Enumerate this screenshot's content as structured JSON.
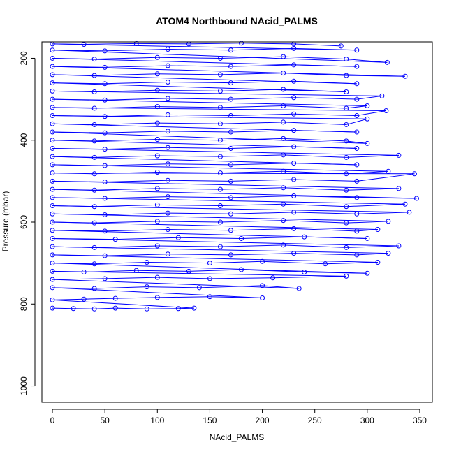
{
  "chart_data": {
    "type": "line",
    "title": "ATOM4 Northbound NAcid_PALMS",
    "xlabel": "NAcid_PALMS",
    "ylabel": "Pressure (mbar)",
    "xlim": [
      -10,
      362
    ],
    "ylim": [
      1040,
      160
    ],
    "y_reversed": true,
    "x_ticks": [
      0,
      50,
      100,
      150,
      200,
      250,
      300,
      350
    ],
    "y_ticks": [
      200,
      400,
      600,
      800,
      1000
    ],
    "series": [
      {
        "color": "#0000ff",
        "marker": "open-circle",
        "points": [
          [
            0,
            810
          ],
          [
            20,
            811
          ],
          [
            40,
            812
          ],
          [
            60,
            810
          ],
          [
            90,
            812
          ],
          [
            120,
            811
          ],
          [
            135,
            810
          ],
          [
            0,
            790
          ],
          [
            30,
            788
          ],
          [
            60,
            786
          ],
          [
            100,
            784
          ],
          [
            150,
            782
          ],
          [
            200,
            785
          ],
          [
            0,
            760
          ],
          [
            40,
            762
          ],
          [
            90,
            758
          ],
          [
            140,
            760
          ],
          [
            200,
            755
          ],
          [
            235,
            762
          ],
          [
            0,
            740
          ],
          [
            50,
            738
          ],
          [
            100,
            735
          ],
          [
            150,
            738
          ],
          [
            210,
            736
          ],
          [
            280,
            732
          ],
          [
            0,
            720
          ],
          [
            30,
            722
          ],
          [
            80,
            718
          ],
          [
            130,
            720
          ],
          [
            180,
            716
          ],
          [
            240,
            722
          ],
          [
            300,
            725
          ],
          [
            0,
            700
          ],
          [
            40,
            702
          ],
          [
            90,
            698
          ],
          [
            150,
            700
          ],
          [
            200,
            696
          ],
          [
            260,
            702
          ],
          [
            310,
            698
          ],
          [
            0,
            680
          ],
          [
            50,
            682
          ],
          [
            110,
            678
          ],
          [
            170,
            680
          ],
          [
            230,
            676
          ],
          [
            290,
            680
          ],
          [
            320,
            676
          ],
          [
            0,
            660
          ],
          [
            40,
            662
          ],
          [
            100,
            658
          ],
          [
            160,
            660
          ],
          [
            220,
            656
          ],
          [
            280,
            662
          ],
          [
            330,
            658
          ],
          [
            0,
            640
          ],
          [
            60,
            642
          ],
          [
            120,
            638
          ],
          [
            180,
            640
          ],
          [
            240,
            636
          ],
          [
            300,
            640
          ],
          [
            0,
            620
          ],
          [
            50,
            622
          ],
          [
            110,
            618
          ],
          [
            170,
            620
          ],
          [
            230,
            616
          ],
          [
            290,
            622
          ],
          [
            310,
            618
          ],
          [
            0,
            600
          ],
          [
            40,
            602
          ],
          [
            100,
            598
          ],
          [
            160,
            600
          ],
          [
            220,
            596
          ],
          [
            280,
            602
          ],
          [
            320,
            598
          ],
          [
            0,
            580
          ],
          [
            50,
            582
          ],
          [
            110,
            578
          ],
          [
            170,
            580
          ],
          [
            230,
            576
          ],
          [
            290,
            580
          ],
          [
            340,
            576
          ],
          [
            0,
            560
          ],
          [
            40,
            562
          ],
          [
            100,
            558
          ],
          [
            160,
            560
          ],
          [
            220,
            556
          ],
          [
            280,
            562
          ],
          [
            336,
            556
          ],
          [
            0,
            540
          ],
          [
            50,
            542
          ],
          [
            110,
            538
          ],
          [
            170,
            540
          ],
          [
            230,
            536
          ],
          [
            290,
            540
          ],
          [
            347,
            542
          ],
          [
            0,
            520
          ],
          [
            40,
            522
          ],
          [
            100,
            518
          ],
          [
            160,
            520
          ],
          [
            220,
            516
          ],
          [
            280,
            522
          ],
          [
            330,
            518
          ],
          [
            0,
            500
          ],
          [
            50,
            502
          ],
          [
            110,
            498
          ],
          [
            170,
            500
          ],
          [
            230,
            496
          ],
          [
            290,
            500
          ],
          [
            345,
            482
          ],
          [
            0,
            480
          ],
          [
            40,
            482
          ],
          [
            100,
            478
          ],
          [
            160,
            480
          ],
          [
            220,
            476
          ],
          [
            280,
            482
          ],
          [
            320,
            476
          ],
          [
            0,
            460
          ],
          [
            50,
            462
          ],
          [
            110,
            458
          ],
          [
            170,
            460
          ],
          [
            230,
            456
          ],
          [
            290,
            460
          ],
          [
            0,
            440
          ],
          [
            40,
            442
          ],
          [
            100,
            438
          ],
          [
            160,
            440
          ],
          [
            220,
            436
          ],
          [
            280,
            442
          ],
          [
            330,
            437
          ],
          [
            0,
            420
          ],
          [
            50,
            422
          ],
          [
            110,
            418
          ],
          [
            170,
            420
          ],
          [
            230,
            416
          ],
          [
            290,
            420
          ],
          [
            0,
            400
          ],
          [
            40,
            402
          ],
          [
            100,
            398
          ],
          [
            160,
            400
          ],
          [
            220,
            396
          ],
          [
            280,
            402
          ],
          [
            300,
            408
          ],
          [
            0,
            380
          ],
          [
            50,
            382
          ],
          [
            110,
            378
          ],
          [
            170,
            380
          ],
          [
            230,
            376
          ],
          [
            290,
            380
          ],
          [
            0,
            360
          ],
          [
            40,
            362
          ],
          [
            100,
            358
          ],
          [
            160,
            360
          ],
          [
            220,
            356
          ],
          [
            280,
            362
          ],
          [
            300,
            348
          ],
          [
            0,
            340
          ],
          [
            50,
            342
          ],
          [
            110,
            338
          ],
          [
            170,
            340
          ],
          [
            230,
            336
          ],
          [
            290,
            340
          ],
          [
            318,
            328
          ],
          [
            0,
            320
          ],
          [
            40,
            322
          ],
          [
            100,
            318
          ],
          [
            160,
            320
          ],
          [
            220,
            316
          ],
          [
            280,
            322
          ],
          [
            300,
            316
          ],
          [
            0,
            300
          ],
          [
            50,
            302
          ],
          [
            110,
            298
          ],
          [
            170,
            300
          ],
          [
            230,
            296
          ],
          [
            290,
            300
          ],
          [
            314,
            292
          ],
          [
            0,
            280
          ],
          [
            40,
            282
          ],
          [
            100,
            278
          ],
          [
            160,
            280
          ],
          [
            220,
            276
          ],
          [
            280,
            282
          ],
          [
            0,
            260
          ],
          [
            50,
            262
          ],
          [
            110,
            258
          ],
          [
            170,
            260
          ],
          [
            230,
            256
          ],
          [
            290,
            262
          ],
          [
            0,
            240
          ],
          [
            40,
            242
          ],
          [
            100,
            238
          ],
          [
            160,
            240
          ],
          [
            220,
            236
          ],
          [
            280,
            242
          ],
          [
            336,
            244
          ],
          [
            0,
            220
          ],
          [
            50,
            222
          ],
          [
            110,
            218
          ],
          [
            170,
            220
          ],
          [
            230,
            216
          ],
          [
            290,
            220
          ],
          [
            0,
            200
          ],
          [
            40,
            202
          ],
          [
            100,
            198
          ],
          [
            160,
            200
          ],
          [
            220,
            196
          ],
          [
            280,
            202
          ],
          [
            319,
            210
          ],
          [
            0,
            180
          ],
          [
            50,
            182
          ],
          [
            110,
            178
          ],
          [
            170,
            180
          ],
          [
            230,
            176
          ],
          [
            290,
            180
          ],
          [
            0,
            165
          ],
          [
            30,
            166
          ],
          [
            80,
            164
          ],
          [
            130,
            165
          ],
          [
            180,
            163
          ],
          [
            230,
            165
          ],
          [
            275,
            170
          ]
        ]
      }
    ]
  }
}
